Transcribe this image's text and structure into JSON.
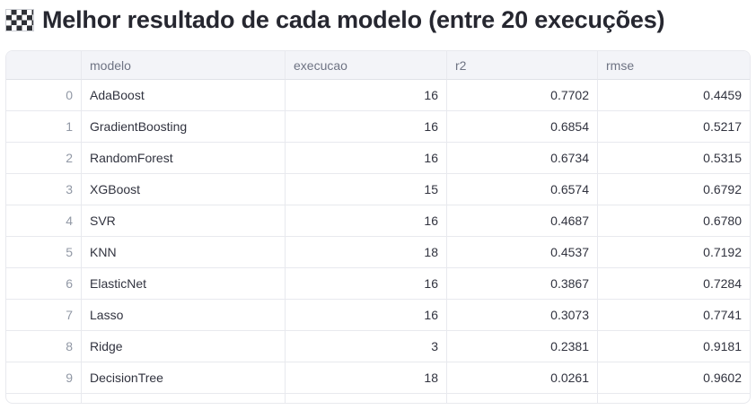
{
  "title": {
    "icon": "checkered-flag",
    "text": "Melhor resultado de cada modelo (entre 20 execuções)"
  },
  "table": {
    "columns": [
      "",
      "modelo",
      "execucao",
      "r2",
      "rmse"
    ],
    "column_keys": [
      "index",
      "modelo",
      "execucao",
      "r2",
      "rmse"
    ],
    "rows": [
      [
        "0",
        "AdaBoost",
        "16",
        "0.7702",
        "0.4459"
      ],
      [
        "1",
        "GradientBoosting",
        "16",
        "0.6854",
        "0.5217"
      ],
      [
        "2",
        "RandomForest",
        "16",
        "0.6734",
        "0.5315"
      ],
      [
        "3",
        "XGBoost",
        "15",
        "0.6574",
        "0.6792"
      ],
      [
        "4",
        "SVR",
        "16",
        "0.4687",
        "0.6780"
      ],
      [
        "5",
        "KNN",
        "18",
        "0.4537",
        "0.7192"
      ],
      [
        "6",
        "ElasticNet",
        "16",
        "0.3867",
        "0.7284"
      ],
      [
        "7",
        "Lasso",
        "16",
        "0.3073",
        "0.7741"
      ],
      [
        "8",
        "Ridge",
        "3",
        "0.2381",
        "0.9181"
      ],
      [
        "9",
        "DecisionTree",
        "18",
        "0.0261",
        "0.9602"
      ]
    ],
    "trailing_empty_row": true
  },
  "colors": {
    "header_bg": "#f3f4f8",
    "border": "#e8e9ee",
    "header_border": "#dfe1e7",
    "title_text": "#262730",
    "cell_text": "#31333f",
    "index_text": "#9198a5",
    "header_text": "#6e7383",
    "page_bg": "#ffffff"
  }
}
